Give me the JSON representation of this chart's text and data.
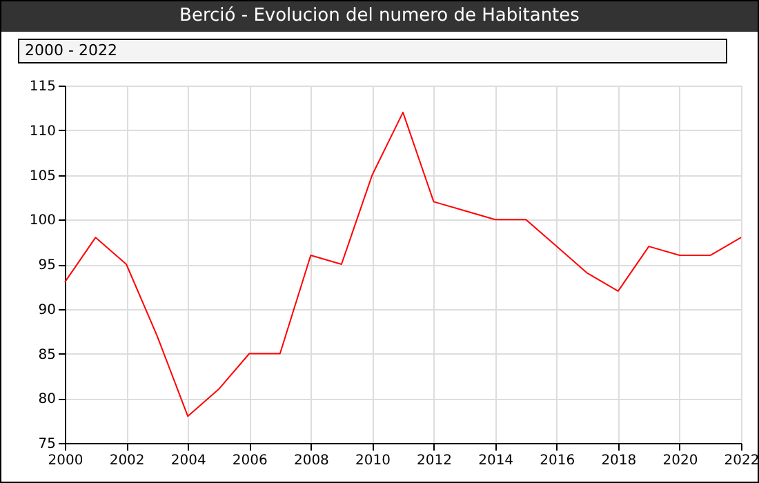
{
  "chart_data": {
    "type": "line",
    "title": "Berció - Evolucion del numero de Habitantes",
    "subtitle": "2000 - 2022",
    "x": [
      2000,
      2001,
      2002,
      2003,
      2004,
      2005,
      2006,
      2007,
      2008,
      2009,
      2010,
      2011,
      2012,
      2013,
      2014,
      2015,
      2016,
      2017,
      2018,
      2019,
      2020,
      2021,
      2022
    ],
    "series": [
      {
        "color": "#ff0000",
        "values": [
          93,
          98,
          95,
          87,
          78,
          81,
          85,
          85,
          96,
          95,
          105,
          112,
          102,
          101,
          100,
          100,
          97,
          94,
          92,
          97,
          96,
          96,
          98
        ]
      }
    ],
    "xlim": [
      2000,
      2022
    ],
    "xticks": [
      2000,
      2002,
      2004,
      2006,
      2008,
      2010,
      2012,
      2014,
      2016,
      2018,
      2020,
      2022
    ],
    "ylim": [
      75,
      115
    ],
    "yticks": [
      75,
      80,
      85,
      90,
      95,
      100,
      105,
      110,
      115
    ],
    "grid": true,
    "marker": "none",
    "line_style": "solid"
  }
}
